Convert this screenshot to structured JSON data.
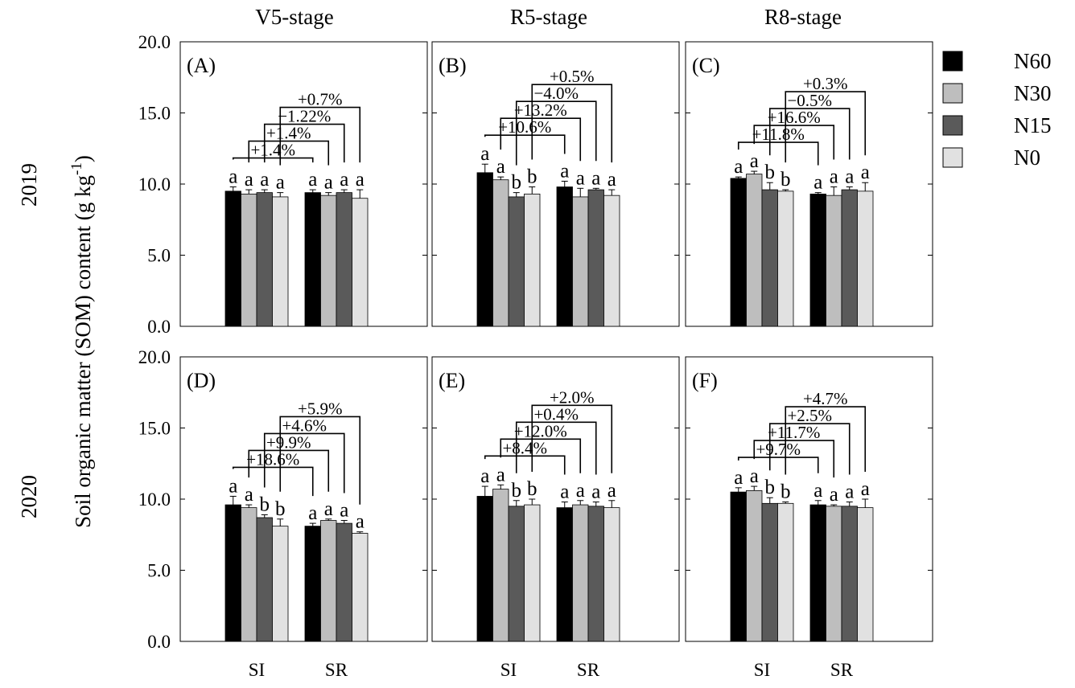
{
  "figure": {
    "ylabel": "Soil organic matter (SOM) content (g kg",
    "ylabel_sup": "-1",
    "ylabel_close": ")",
    "stage_titles": [
      "V5-stage",
      "R5-stage",
      "R8-stage"
    ],
    "year_labels": [
      "2019",
      "2020"
    ]
  },
  "legend": [
    {
      "name": "N60",
      "color": "#000000"
    },
    {
      "name": "N30",
      "color": "#bebebe"
    },
    {
      "name": "N15",
      "color": "#5a5a5a"
    },
    {
      "name": "N0",
      "color": "#e1e1e1"
    }
  ],
  "chart_data": [
    {
      "type": "bar",
      "panel": "(A)",
      "year": "2019",
      "stage": "V5-stage",
      "categories": [
        "SI",
        "SR"
      ],
      "ylim": [
        0,
        20
      ],
      "yticks": [
        "0.0",
        "5.0",
        "10.0",
        "15.0",
        "20.0"
      ],
      "series": [
        {
          "name": "N60",
          "values": [
            9.5,
            9.4
          ],
          "errors": [
            0.3,
            0.2
          ],
          "letters": [
            "a",
            "a"
          ]
        },
        {
          "name": "N30",
          "values": [
            9.3,
            9.2
          ],
          "errors": [
            0.3,
            0.2
          ],
          "letters": [
            "a",
            "a"
          ]
        },
        {
          "name": "N15",
          "values": [
            9.4,
            9.4
          ],
          "errors": [
            0.2,
            0.2
          ],
          "letters": [
            "a",
            "a"
          ]
        },
        {
          "name": "N0",
          "values": [
            9.1,
            9.0
          ],
          "errors": [
            0.3,
            0.6
          ],
          "letters": [
            "a",
            "a"
          ]
        }
      ],
      "comparisons": [
        "+1.4%",
        "+1.4%",
        "−1.22%",
        "+0.7%"
      ]
    },
    {
      "type": "bar",
      "panel": "(B)",
      "year": "2019",
      "stage": "R5-stage",
      "categories": [
        "SI",
        "SR"
      ],
      "ylim": [
        0,
        20
      ],
      "yticks": [
        "0.0",
        "5.0",
        "10.0",
        "15.0",
        "20.0"
      ],
      "series": [
        {
          "name": "N60",
          "values": [
            10.8,
            9.8
          ],
          "errors": [
            0.6,
            0.4
          ],
          "letters": [
            "a",
            "a"
          ]
        },
        {
          "name": "N30",
          "values": [
            10.3,
            9.1
          ],
          "errors": [
            0.2,
            0.6
          ],
          "letters": [
            "a",
            "a"
          ]
        },
        {
          "name": "N15",
          "values": [
            9.1,
            9.6
          ],
          "errors": [
            0.3,
            0.1
          ],
          "letters": [
            "b",
            "a"
          ]
        },
        {
          "name": "N0",
          "values": [
            9.3,
            9.2
          ],
          "errors": [
            0.5,
            0.4
          ],
          "letters": [
            "b",
            "a"
          ]
        }
      ],
      "comparisons": [
        "+10.6%",
        "+13.2%",
        "−4.0%",
        "+0.5%"
      ]
    },
    {
      "type": "bar",
      "panel": "(C)",
      "year": "2019",
      "stage": "R8-stage",
      "categories": [
        "SI",
        "SR"
      ],
      "ylim": [
        0,
        20
      ],
      "yticks": [
        "0.0",
        "5.0",
        "10.0",
        "15.0",
        "20.0"
      ],
      "series": [
        {
          "name": "N60",
          "values": [
            10.4,
            9.3
          ],
          "errors": [
            0.1,
            0.1
          ],
          "letters": [
            "a",
            "a"
          ]
        },
        {
          "name": "N30",
          "values": [
            10.7,
            9.2
          ],
          "errors": [
            0.2,
            0.6
          ],
          "letters": [
            "a",
            "a"
          ]
        },
        {
          "name": "N15",
          "values": [
            9.6,
            9.6
          ],
          "errors": [
            0.5,
            0.2
          ],
          "letters": [
            "b",
            "a"
          ]
        },
        {
          "name": "N0",
          "values": [
            9.5,
            9.5
          ],
          "errors": [
            0.1,
            0.6
          ],
          "letters": [
            "b",
            "a"
          ]
        }
      ],
      "comparisons": [
        "+11.8%",
        "+16.6%",
        "−0.5%",
        "+0.3%"
      ]
    },
    {
      "type": "bar",
      "panel": "(D)",
      "year": "2020",
      "stage": "V5-stage",
      "categories": [
        "SI",
        "SR"
      ],
      "ylim": [
        0,
        20
      ],
      "yticks": [
        "0.0",
        "5.0",
        "10.0",
        "15.0",
        "20.0"
      ],
      "series": [
        {
          "name": "N60",
          "values": [
            9.6,
            8.1
          ],
          "errors": [
            0.6,
            0.2
          ],
          "letters": [
            "a",
            "a"
          ]
        },
        {
          "name": "N30",
          "values": [
            9.4,
            8.5
          ],
          "errors": [
            0.2,
            0.1
          ],
          "letters": [
            "a",
            "a"
          ]
        },
        {
          "name": "N15",
          "values": [
            8.7,
            8.3
          ],
          "errors": [
            0.2,
            0.2
          ],
          "letters": [
            "b",
            "a"
          ]
        },
        {
          "name": "N0",
          "values": [
            8.1,
            7.6
          ],
          "errors": [
            0.5,
            0.1
          ],
          "letters": [
            "b",
            "a"
          ]
        }
      ],
      "comparisons": [
        "+18.6%",
        "+9.9%",
        "+4.6%",
        "+5.9%"
      ]
    },
    {
      "type": "bar",
      "panel": "(E)",
      "year": "2020",
      "stage": "R5-stage",
      "categories": [
        "SI",
        "SR"
      ],
      "ylim": [
        0,
        20
      ],
      "yticks": [
        "0.0",
        "5.0",
        "10.0",
        "15.0",
        "20.0"
      ],
      "series": [
        {
          "name": "N60",
          "values": [
            10.2,
            9.4
          ],
          "errors": [
            0.7,
            0.4
          ],
          "letters": [
            "a",
            "a"
          ]
        },
        {
          "name": "N30",
          "values": [
            10.7,
            9.6
          ],
          "errors": [
            0.3,
            0.3
          ],
          "letters": [
            "a",
            "a"
          ]
        },
        {
          "name": "N15",
          "values": [
            9.5,
            9.5
          ],
          "errors": [
            0.4,
            0.3
          ],
          "letters": [
            "b",
            "a"
          ]
        },
        {
          "name": "N0",
          "values": [
            9.6,
            9.4
          ],
          "errors": [
            0.4,
            0.5
          ],
          "letters": [
            "b",
            "a"
          ]
        }
      ],
      "comparisons": [
        "+8.4%",
        "+12.0%",
        "+0.4%",
        "+2.0%"
      ]
    },
    {
      "type": "bar",
      "panel": "(F)",
      "year": "2020",
      "stage": "R8-stage",
      "categories": [
        "SI",
        "SR"
      ],
      "ylim": [
        0,
        20
      ],
      "yticks": [
        "0.0",
        "5.0",
        "10.0",
        "15.0",
        "20.0"
      ],
      "series": [
        {
          "name": "N60",
          "values": [
            10.5,
            9.6
          ],
          "errors": [
            0.3,
            0.3
          ],
          "letters": [
            "a",
            "a"
          ]
        },
        {
          "name": "N30",
          "values": [
            10.6,
            9.5
          ],
          "errors": [
            0.3,
            0.1
          ],
          "letters": [
            "a",
            "a"
          ]
        },
        {
          "name": "N15",
          "values": [
            9.7,
            9.5
          ],
          "errors": [
            0.4,
            0.3
          ],
          "letters": [
            "b",
            "a"
          ]
        },
        {
          "name": "N0",
          "values": [
            9.7,
            9.4
          ],
          "errors": [
            0.1,
            0.6
          ],
          "letters": [
            "b",
            "a"
          ]
        }
      ],
      "comparisons": [
        "+9.7%",
        "+11.7%",
        "+2.5%",
        "+4.7%"
      ]
    }
  ]
}
